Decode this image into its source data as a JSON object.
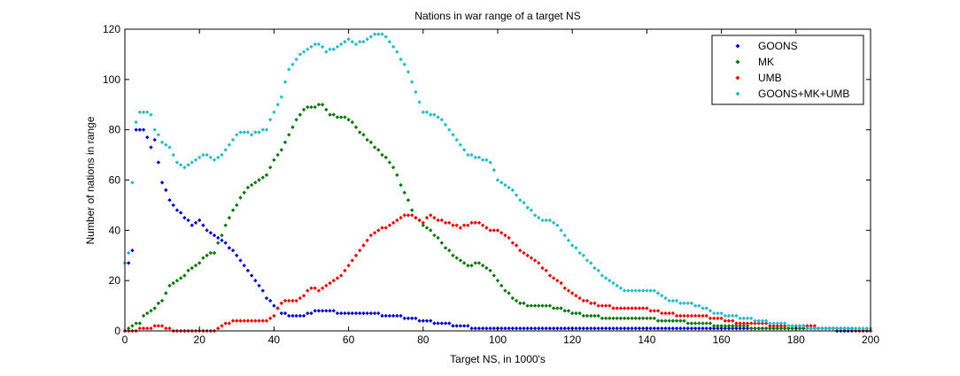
{
  "chart_data": {
    "type": "scatter",
    "title": "Nations in war range of a target NS",
    "xlabel": "Target NS, in 1000's",
    "ylabel": "Number of nations in range",
    "xlim": [
      0,
      200
    ],
    "ylim": [
      0,
      120
    ],
    "x_ticks": [
      0,
      20,
      40,
      60,
      80,
      100,
      120,
      140,
      160,
      180,
      200
    ],
    "y_ticks": [
      0,
      20,
      40,
      60,
      80,
      100,
      120
    ],
    "x_tick_labels": [
      "0",
      "20",
      "40",
      "60",
      "80",
      "100",
      "120",
      "140",
      "160",
      "180",
      "200"
    ],
    "y_tick_labels": [
      "0",
      "20",
      "40",
      "60",
      "80",
      "100",
      "120"
    ],
    "grid": false,
    "legend_position": "top-right",
    "series": [
      {
        "name": "GOONS",
        "color": "#0000cc",
        "keypoints": [
          [
            0,
            0
          ],
          [
            1,
            27
          ],
          [
            2,
            32
          ],
          [
            3,
            80
          ],
          [
            5,
            80
          ],
          [
            7,
            73
          ],
          [
            8,
            76
          ],
          [
            9,
            67
          ],
          [
            10,
            59
          ],
          [
            12,
            52
          ],
          [
            14,
            48
          ],
          [
            16,
            45
          ],
          [
            18,
            42
          ],
          [
            20,
            44
          ],
          [
            22,
            40
          ],
          [
            24,
            38
          ],
          [
            26,
            36
          ],
          [
            28,
            33
          ],
          [
            30,
            30
          ],
          [
            32,
            26
          ],
          [
            34,
            22
          ],
          [
            36,
            18
          ],
          [
            38,
            13
          ],
          [
            40,
            10
          ],
          [
            42,
            7
          ],
          [
            44,
            6
          ],
          [
            46,
            6
          ],
          [
            48,
            6
          ],
          [
            50,
            7
          ],
          [
            52,
            8
          ],
          [
            55,
            8
          ],
          [
            58,
            7
          ],
          [
            65,
            7
          ],
          [
            72,
            6
          ],
          [
            76,
            5
          ],
          [
            80,
            4
          ],
          [
            84,
            3
          ],
          [
            90,
            2
          ],
          [
            94,
            1
          ],
          [
            120,
            1
          ],
          [
            140,
            1
          ],
          [
            160,
            1
          ],
          [
            180,
            1
          ],
          [
            200,
            0
          ]
        ]
      },
      {
        "name": "MK",
        "color": "#007700",
        "keypoints": [
          [
            0,
            0
          ],
          [
            2,
            2
          ],
          [
            4,
            3
          ],
          [
            5,
            6
          ],
          [
            6,
            7
          ],
          [
            7,
            8
          ],
          [
            8,
            9
          ],
          [
            9,
            11
          ],
          [
            10,
            12
          ],
          [
            12,
            18
          ],
          [
            14,
            20
          ],
          [
            16,
            22
          ],
          [
            18,
            25
          ],
          [
            20,
            27
          ],
          [
            22,
            30
          ],
          [
            24,
            31
          ],
          [
            26,
            38
          ],
          [
            28,
            45
          ],
          [
            30,
            50
          ],
          [
            32,
            55
          ],
          [
            34,
            58
          ],
          [
            36,
            60
          ],
          [
            38,
            62
          ],
          [
            40,
            68
          ],
          [
            42,
            72
          ],
          [
            44,
            78
          ],
          [
            46,
            84
          ],
          [
            48,
            88
          ],
          [
            50,
            89
          ],
          [
            53,
            90
          ],
          [
            55,
            86
          ],
          [
            58,
            85
          ],
          [
            60,
            84
          ],
          [
            62,
            81
          ],
          [
            65,
            76
          ],
          [
            68,
            72
          ],
          [
            72,
            65
          ],
          [
            75,
            55
          ],
          [
            78,
            45
          ],
          [
            80,
            42
          ],
          [
            82,
            40
          ],
          [
            85,
            35
          ],
          [
            88,
            30
          ],
          [
            92,
            26
          ],
          [
            95,
            27
          ],
          [
            98,
            24
          ],
          [
            100,
            20
          ],
          [
            102,
            16
          ],
          [
            105,
            12
          ],
          [
            108,
            10
          ],
          [
            112,
            10
          ],
          [
            116,
            9
          ],
          [
            120,
            7
          ],
          [
            125,
            6
          ],
          [
            130,
            5
          ],
          [
            140,
            5
          ],
          [
            145,
            4
          ],
          [
            155,
            3
          ],
          [
            160,
            2
          ],
          [
            165,
            2
          ],
          [
            170,
            1
          ],
          [
            180,
            1
          ],
          [
            190,
            1
          ],
          [
            200,
            0
          ]
        ]
      },
      {
        "name": "UMB",
        "color": "#ee0000",
        "keypoints": [
          [
            0,
            0
          ],
          [
            3,
            0
          ],
          [
            5,
            1
          ],
          [
            7,
            1
          ],
          [
            9,
            2
          ],
          [
            11,
            1
          ],
          [
            13,
            0
          ],
          [
            16,
            0
          ],
          [
            20,
            0
          ],
          [
            24,
            0
          ],
          [
            26,
            2
          ],
          [
            28,
            3
          ],
          [
            30,
            4
          ],
          [
            34,
            4
          ],
          [
            38,
            4
          ],
          [
            40,
            6
          ],
          [
            42,
            11
          ],
          [
            44,
            12
          ],
          [
            46,
            12
          ],
          [
            48,
            14
          ],
          [
            50,
            17
          ],
          [
            52,
            16
          ],
          [
            54,
            18
          ],
          [
            56,
            20
          ],
          [
            58,
            22
          ],
          [
            60,
            26
          ],
          [
            62,
            30
          ],
          [
            64,
            34
          ],
          [
            66,
            38
          ],
          [
            68,
            40
          ],
          [
            70,
            41
          ],
          [
            72,
            43
          ],
          [
            74,
            45
          ],
          [
            76,
            46
          ],
          [
            78,
            45
          ],
          [
            80,
            43
          ],
          [
            82,
            46
          ],
          [
            84,
            44
          ],
          [
            86,
            43
          ],
          [
            88,
            42
          ],
          [
            90,
            41
          ],
          [
            92,
            42
          ],
          [
            94,
            43
          ],
          [
            96,
            42
          ],
          [
            98,
            40
          ],
          [
            100,
            40
          ],
          [
            102,
            38
          ],
          [
            104,
            35
          ],
          [
            106,
            32
          ],
          [
            108,
            30
          ],
          [
            110,
            28
          ],
          [
            112,
            25
          ],
          [
            114,
            22
          ],
          [
            116,
            20
          ],
          [
            118,
            17
          ],
          [
            120,
            15
          ],
          [
            122,
            13
          ],
          [
            125,
            11
          ],
          [
            128,
            10
          ],
          [
            132,
            9
          ],
          [
            138,
            9
          ],
          [
            142,
            8
          ],
          [
            145,
            7
          ],
          [
            150,
            6
          ],
          [
            155,
            6
          ],
          [
            158,
            5
          ],
          [
            162,
            4
          ],
          [
            165,
            3
          ],
          [
            170,
            3
          ],
          [
            175,
            2
          ],
          [
            180,
            2
          ],
          [
            190,
            1
          ],
          [
            200,
            0
          ]
        ]
      },
      {
        "name": "GOONS+MK+UMB",
        "color": "#22bbcc",
        "keypoints": [
          [
            0,
            27
          ],
          [
            1,
            31
          ],
          [
            2,
            59
          ],
          [
            3,
            83
          ],
          [
            4,
            87
          ],
          [
            6,
            87
          ],
          [
            7,
            86
          ],
          [
            8,
            80
          ],
          [
            10,
            75
          ],
          [
            12,
            73
          ],
          [
            14,
            67
          ],
          [
            16,
            65
          ],
          [
            18,
            67
          ],
          [
            20,
            69
          ],
          [
            22,
            70
          ],
          [
            24,
            68
          ],
          [
            26,
            70
          ],
          [
            28,
            74
          ],
          [
            30,
            78
          ],
          [
            32,
            79
          ],
          [
            34,
            78
          ],
          [
            36,
            79
          ],
          [
            38,
            80
          ],
          [
            40,
            87
          ],
          [
            42,
            93
          ],
          [
            44,
            104
          ],
          [
            46,
            108
          ],
          [
            48,
            111
          ],
          [
            50,
            113
          ],
          [
            52,
            114
          ],
          [
            54,
            111
          ],
          [
            56,
            112
          ],
          [
            58,
            114
          ],
          [
            60,
            116
          ],
          [
            62,
            114
          ],
          [
            64,
            115
          ],
          [
            66,
            117
          ],
          [
            68,
            118
          ],
          [
            70,
            117
          ],
          [
            72,
            113
          ],
          [
            74,
            108
          ],
          [
            76,
            103
          ],
          [
            78,
            95
          ],
          [
            80,
            87
          ],
          [
            82,
            86
          ],
          [
            84,
            85
          ],
          [
            86,
            82
          ],
          [
            88,
            78
          ],
          [
            90,
            74
          ],
          [
            92,
            70
          ],
          [
            94,
            69
          ],
          [
            96,
            68
          ],
          [
            98,
            67
          ],
          [
            100,
            60
          ],
          [
            102,
            58
          ],
          [
            104,
            56
          ],
          [
            106,
            52
          ],
          [
            108,
            49
          ],
          [
            110,
            46
          ],
          [
            112,
            44
          ],
          [
            114,
            44
          ],
          [
            116,
            42
          ],
          [
            118,
            38
          ],
          [
            120,
            34
          ],
          [
            122,
            31
          ],
          [
            124,
            28
          ],
          [
            126,
            25
          ],
          [
            128,
            22
          ],
          [
            130,
            20
          ],
          [
            132,
            18
          ],
          [
            134,
            16
          ],
          [
            138,
            16
          ],
          [
            142,
            16
          ],
          [
            144,
            14
          ],
          [
            146,
            12
          ],
          [
            150,
            11
          ],
          [
            154,
            10
          ],
          [
            158,
            7
          ],
          [
            162,
            6
          ],
          [
            166,
            5
          ],
          [
            170,
            4
          ],
          [
            175,
            3
          ],
          [
            180,
            2
          ],
          [
            185,
            1
          ],
          [
            190,
            1
          ],
          [
            200,
            1
          ]
        ]
      }
    ]
  }
}
